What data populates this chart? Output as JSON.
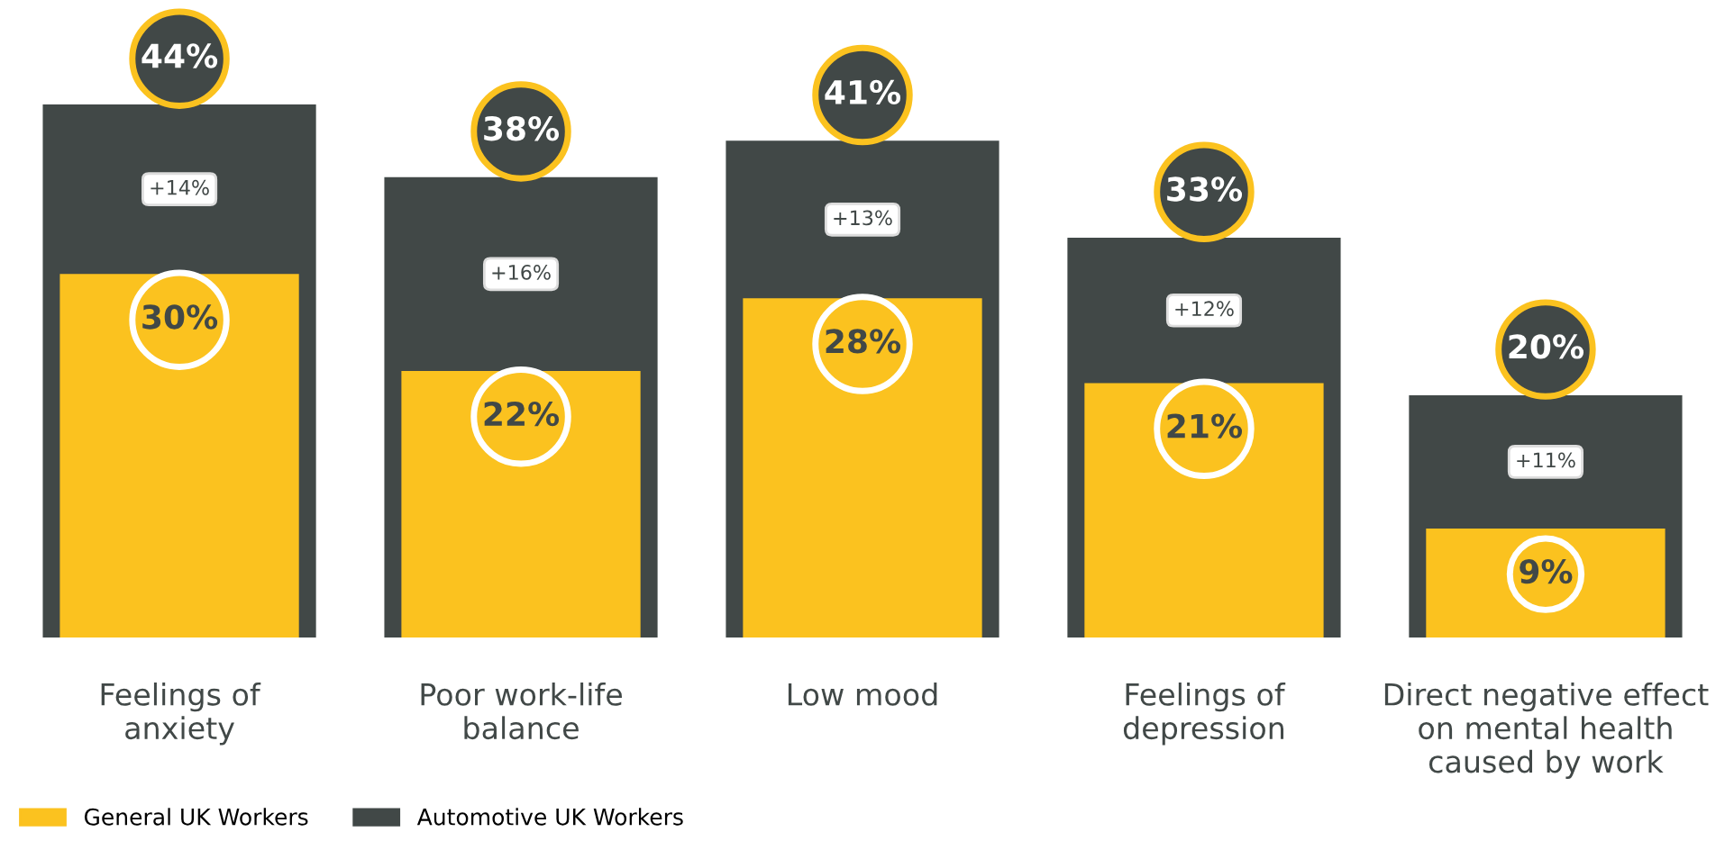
{
  "chart_data": {
    "type": "bar",
    "categories": [
      "Feelings of\nanxiety",
      "Poor work-life\nbalance",
      "Low mood",
      "Feelings of\ndepression",
      "Direct negative effect\non mental health\ncaused by work"
    ],
    "series": [
      {
        "name": "Automotive UK Workers",
        "color": "#414847",
        "values": [
          44,
          38,
          41,
          33,
          20
        ],
        "value_labels": [
          "44%",
          "38%",
          "41%",
          "33%",
          "20%"
        ]
      },
      {
        "name": "General UK Workers",
        "color": "#fbc21f",
        "values": [
          30,
          22,
          28,
          21,
          9
        ],
        "value_labels": [
          "30%",
          "22%",
          "28%",
          "21%",
          "9%"
        ]
      }
    ],
    "annotations": [
      {
        "text": "+14%",
        "x": "Feelings of\nanxiety",
        "y": 37
      },
      {
        "text": "+16%",
        "x": "Poor work-life\nbalance",
        "y": 30
      },
      {
        "text": "+13%",
        "x": "Low mood",
        "y": 34.5
      },
      {
        "text": "+12%",
        "x": "Feelings of\ndepression",
        "y": 27
      },
      {
        "text": "+11%",
        "x": "Direct negative effect\non mental health\ncaused by work",
        "y": 14.5
      }
    ],
    "tick_labels": "x",
    "grid": false,
    "legend": "bottom left"
  }
}
